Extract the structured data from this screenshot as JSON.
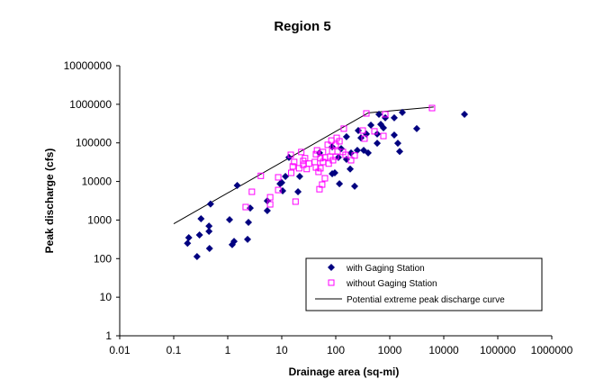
{
  "chart_data": {
    "type": "scatter",
    "title": "Region 5",
    "xlabel": "Drainage area (sq-mi)",
    "ylabel": "Peak discharge (cfs)",
    "xscale": "log",
    "yscale": "log",
    "xlim": [
      0.01,
      1000000
    ],
    "ylim": [
      1,
      10000000
    ],
    "xticks": [
      "0.01",
      "0.1",
      "1",
      "10",
      "100",
      "1000",
      "10000",
      "100000",
      "1000000"
    ],
    "yticks": [
      "1",
      "10",
      "100",
      "1000",
      "10000",
      "100000",
      "1000000",
      "10000000"
    ],
    "grid": false,
    "legend_position": "bottom-right",
    "series": [
      {
        "name": "with Gaging Station",
        "marker": "diamond",
        "color": "#000080",
        "points": [
          [
            1.5,
            7900
          ],
          [
            0.48,
            2600
          ],
          [
            0.32,
            1080
          ],
          [
            1.08,
            1020
          ],
          [
            0.45,
            700
          ],
          [
            0.45,
            510
          ],
          [
            0.19,
            350
          ],
          [
            0.3,
            410
          ],
          [
            0.18,
            250
          ],
          [
            0.46,
            183
          ],
          [
            0.27,
            113
          ],
          [
            1.31,
            280
          ],
          [
            1.21,
            230
          ],
          [
            2.33,
            315
          ],
          [
            2.42,
            870
          ],
          [
            2.61,
            2050
          ],
          [
            5.4,
            3150
          ],
          [
            5.4,
            1750
          ],
          [
            10.4,
            5700
          ],
          [
            20,
            5400
          ],
          [
            9.3,
            8700
          ],
          [
            10,
            9300
          ],
          [
            11.7,
            13500
          ],
          [
            21.5,
            13500
          ],
          [
            86,
            15800
          ],
          [
            96,
            16700
          ],
          [
            117,
            8700
          ],
          [
            224,
            7500
          ],
          [
            185,
            21000
          ],
          [
            158,
            37500
          ],
          [
            112,
            42000
          ],
          [
            329,
            64000
          ],
          [
            398,
            55000
          ],
          [
            251,
            64000
          ],
          [
            192,
            55000
          ],
          [
            126,
            71000
          ],
          [
            86,
            79000
          ],
          [
            158,
            144000
          ],
          [
            261,
            209000
          ],
          [
            293,
            135000
          ],
          [
            369,
            170000
          ],
          [
            585,
            170000
          ],
          [
            585,
            98000
          ],
          [
            1410,
            98000
          ],
          [
            1525,
            60000
          ],
          [
            1210,
            160000
          ],
          [
            3160,
            234000
          ],
          [
            447,
            288000
          ],
          [
            681,
            302000
          ],
          [
            764,
            245000
          ],
          [
            631,
            550000
          ],
          [
            826,
            447000
          ],
          [
            1210,
            447000
          ],
          [
            1710,
            615000
          ],
          [
            24200,
            550000
          ],
          [
            50,
            55000
          ],
          [
            13.6,
            42000
          ]
        ]
      },
      {
        "name": "without Gaging Station",
        "marker": "square-open",
        "color": "#ff00ff",
        "points": [
          [
            369,
            580000
          ],
          [
            826,
            550000
          ],
          [
            6070,
            800000
          ],
          [
            141,
            234000
          ],
          [
            316,
            209000
          ],
          [
            521,
            199000
          ],
          [
            764,
            151000
          ],
          [
            341,
            129000
          ],
          [
            104,
            135000
          ],
          [
            83,
            115000
          ],
          [
            117,
            110000
          ],
          [
            71,
            89000
          ],
          [
            100,
            89000
          ],
          [
            86,
            60000
          ],
          [
            108,
            60000
          ],
          [
            45,
            64000
          ],
          [
            58,
            58000
          ],
          [
            43,
            51000
          ],
          [
            23,
            58000
          ],
          [
            14.7,
            49000
          ],
          [
            136,
            58000
          ],
          [
            152,
            49000
          ],
          [
            224,
            47000
          ],
          [
            192,
            35500
          ],
          [
            79,
            44000
          ],
          [
            100,
            44000
          ],
          [
            63,
            42000
          ],
          [
            52,
            40000
          ],
          [
            27,
            40000
          ],
          [
            17,
            32000
          ],
          [
            25,
            34000
          ],
          [
            25,
            27000
          ],
          [
            32,
            29000
          ],
          [
            41,
            32000
          ],
          [
            58,
            32000
          ],
          [
            74,
            29000
          ],
          [
            89,
            35500
          ],
          [
            16,
            24500
          ],
          [
            21,
            22000
          ],
          [
            29,
            21000
          ],
          [
            43,
            23000
          ],
          [
            52,
            22000
          ],
          [
            48,
            17700
          ],
          [
            15,
            16700
          ],
          [
            63,
            12100
          ],
          [
            8.6,
            12800
          ],
          [
            56,
            8300
          ],
          [
            50,
            6300
          ],
          [
            8.6,
            6000
          ],
          [
            6.1,
            3900
          ],
          [
            18,
            3000
          ],
          [
            6.1,
            2550
          ],
          [
            4.1,
            14000
          ],
          [
            2.8,
            5400
          ],
          [
            2.15,
            2170
          ]
        ]
      },
      {
        "name": "Potential extreme peak discharge curve",
        "marker": "line",
        "color": "#000000",
        "points": [
          [
            0.1,
            800
          ],
          [
            400,
            600000
          ],
          [
            6500,
            850000
          ]
        ]
      }
    ]
  }
}
